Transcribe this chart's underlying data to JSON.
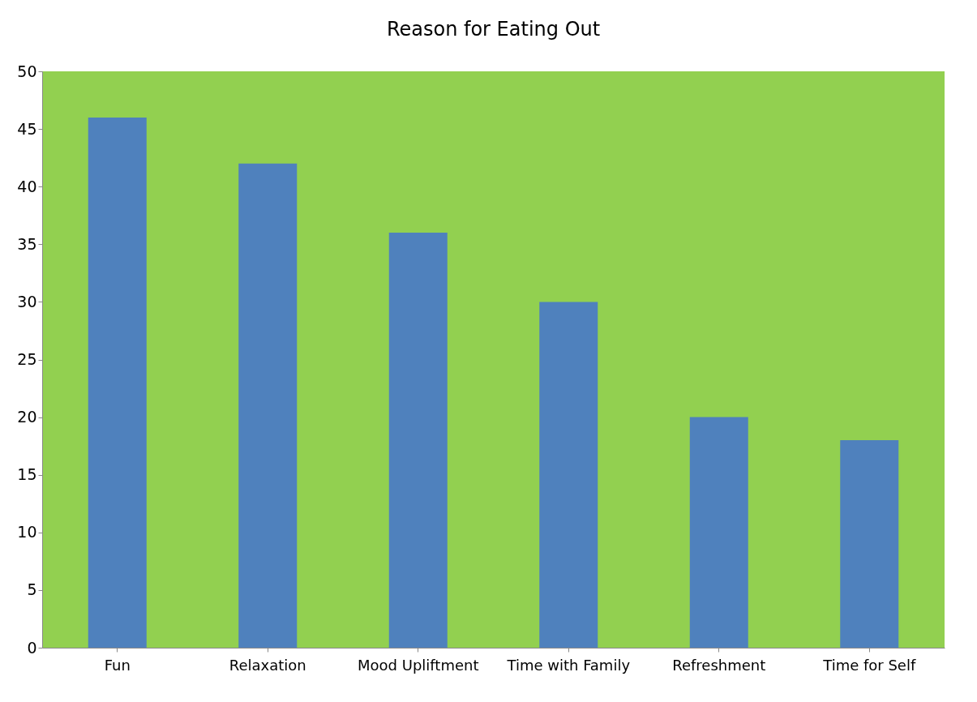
{
  "chart_data": {
    "type": "bar",
    "title": "Reason for Eating Out",
    "categories": [
      "Fun",
      "Relaxation",
      "Mood Upliftment",
      "Time with Family",
      "Refreshment",
      "Time for Self"
    ],
    "values": [
      46,
      42,
      36,
      30,
      20,
      18
    ],
    "color": "#4f81bd",
    "ylim": [
      0,
      50
    ],
    "yticks": [
      0,
      5,
      10,
      15,
      20,
      25,
      30,
      35,
      40,
      45,
      50
    ],
    "grid": false
  }
}
